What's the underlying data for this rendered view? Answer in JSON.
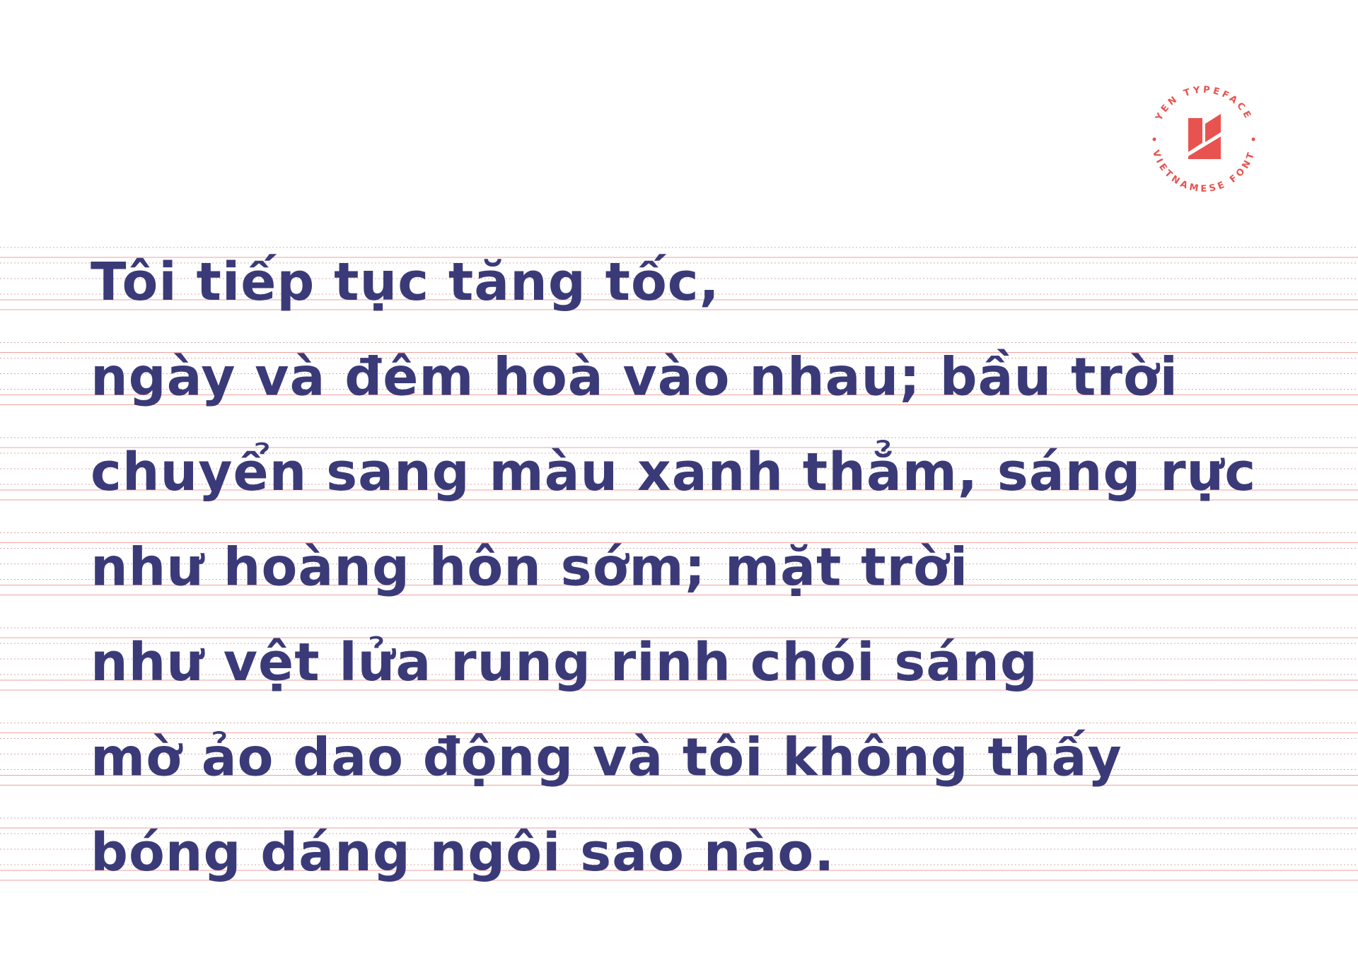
{
  "badge": {
    "top": "YEN TYPEFACE",
    "bottom": "VIETNAMESE FONT"
  },
  "lines": [
    "Tôi tiếp tục tăng tốc,",
    "ngày và đêm hoà vào nhau; bầu trời",
    "chuyển sang màu xanh thẳm, sáng rực",
    "như hoàng hôn sớm; mặt trời",
    "như vệt lửa rung rinh chói sáng",
    "mờ ảo dao động và tôi không thấy",
    "bóng dáng ngôi sao nào."
  ]
}
